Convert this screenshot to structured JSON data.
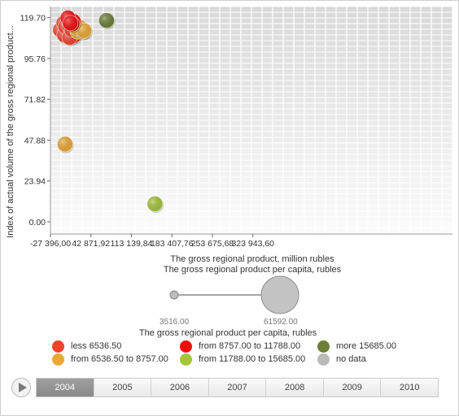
{
  "chart_data": {
    "type": "scatter",
    "xlabel": "The gross regional product, million rubles",
    "ylabel": "Index of actual volume of the gross regional product...",
    "size_label": "The gross regional product per capita, rubles",
    "xlim": [
      -27396,
      345000
    ],
    "ylim": [
      -6,
      122
    ],
    "x_ticks": [
      "-27 396,00",
      "42 871,92",
      "113 139,84",
      "183 407,76",
      "253 675,68",
      "323 943,60"
    ],
    "x_tick_values": [
      -27396,
      42871.92,
      113139.84,
      183407.76,
      253675.68,
      323943.6
    ],
    "y_ticks": [
      "0.00",
      "23.94",
      "47.88",
      "71.82",
      "95.76",
      "119.70"
    ],
    "y_tick_values": [
      0,
      23.94,
      47.88,
      71.82,
      95.76,
      119.7
    ],
    "grid": true,
    "size_min": "3516.00",
    "size_max": "61592.00",
    "series": [
      {
        "name": "less 6536.50",
        "color": "#f0432c",
        "points": [
          [
            -10000,
            112.5
          ],
          [
            -2000,
            110.5
          ],
          [
            -3000,
            109.5
          ],
          [
            -4000,
            116.5
          ],
          [
            -1000,
            114.5
          ],
          [
            6000,
            114.5
          ],
          [
            9000,
            110.5
          ],
          [
            13000,
            109.0
          ],
          [
            6000,
            108.0
          ],
          [
            10000,
            112.5
          ]
        ]
      },
      {
        "name": "from 6536.50 to 8757.00",
        "color": "#eaa935",
        "points": [
          [
            -2000,
            45.5
          ],
          [
            20000,
            111.5
          ],
          [
            28000,
            111.5
          ],
          [
            23000,
            114.0
          ],
          [
            19000,
            113.5
          ],
          [
            31000,
            112.0
          ]
        ]
      },
      {
        "name": "from 8757.00 to 11788.00",
        "color": "#f20d0d",
        "points": [
          [
            5000,
            118.0
          ],
          [
            12000,
            117.5
          ],
          [
            10000,
            116.0
          ],
          [
            3000,
            119.5
          ],
          [
            7000,
            116.5
          ]
        ]
      },
      {
        "name": "from 11788.00 to 15685.00",
        "color": "#a6c43a",
        "points": [
          [
            154000,
            10.5
          ]
        ]
      },
      {
        "name": "more 15685.00",
        "color": "#6b7f36",
        "points": [
          [
            70000,
            118.0
          ]
        ]
      },
      {
        "name": "no data",
        "color": "#bbbbbb",
        "points": []
      }
    ]
  },
  "legend": {
    "title": "The gross regional product per capita, rubles",
    "items": [
      {
        "label": "less 6536.50",
        "color": "#f0432c"
      },
      {
        "label": "from 8757.00 to 11788.00",
        "color": "#f20d0d"
      },
      {
        "label": "more 15685.00",
        "color": "#6b7f36"
      },
      {
        "label": "from 6536.50 to 8757.00",
        "color": "#eaa935"
      },
      {
        "label": "from 11788.00 to 15685.00",
        "color": "#a6c43a"
      },
      {
        "label": "no data",
        "color": "#bbbbbb"
      }
    ]
  },
  "timeline": {
    "years": [
      "2004",
      "2005",
      "2006",
      "2007",
      "2008",
      "2009",
      "2010"
    ],
    "selected": "2004"
  }
}
